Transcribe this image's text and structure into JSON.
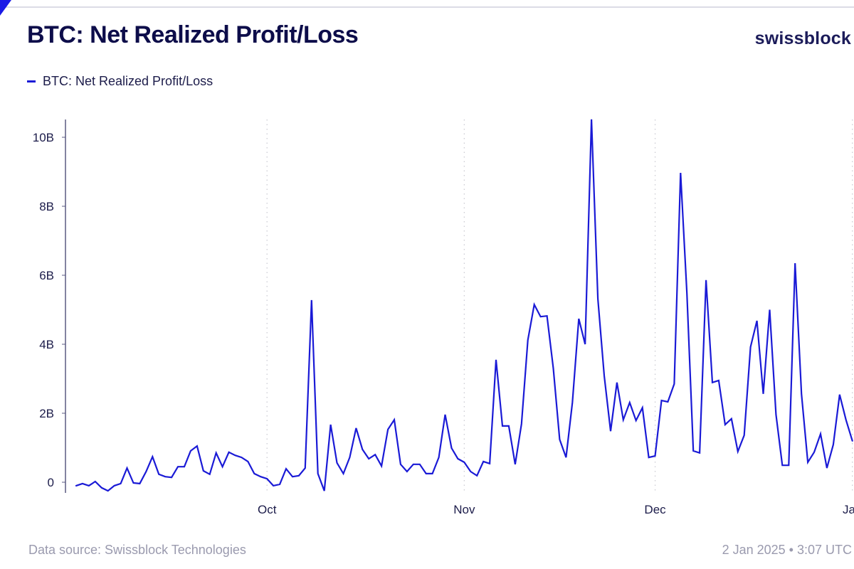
{
  "header": {
    "title": "BTC: Net Realized Profit/Loss",
    "brand": "swissblock"
  },
  "footer": {
    "source": "Data source: Swissblock Technologies",
    "timestamp": "2 Jan 2025 • 3:07 UTC"
  },
  "colors": {
    "line": "#1a1ad6",
    "title": "#0d0d4a",
    "axis": "#5a5a80",
    "grid": "#c8c8d0",
    "footer": "#9a9aae"
  },
  "chart_data": {
    "type": "line",
    "title": "BTC: Net Realized Profit/Loss",
    "xlabel": "",
    "ylabel": "",
    "legend": [
      "BTC: Net Realized Profit/Loss"
    ],
    "legend_position": "top-left",
    "grid": "vertical dotted at month starts",
    "x_start": "2024-09-01",
    "x_end": "2025-01-01",
    "x_unit": "day",
    "x_ticks": [
      {
        "label": "Oct",
        "day_index": 30
      },
      {
        "label": "Nov",
        "day_index": 61
      },
      {
        "label": "Dec",
        "day_index": 91
      },
      {
        "label": "Jan",
        "day_index": 122
      }
    ],
    "y_ticks": [
      {
        "label": "0",
        "value": 0
      },
      {
        "label": "2B",
        "value": 2
      },
      {
        "label": "4B",
        "value": 4
      },
      {
        "label": "6B",
        "value": 6
      },
      {
        "label": "8B",
        "value": 8
      },
      {
        "label": "10B",
        "value": 10
      }
    ],
    "ylim": [
      -0.35,
      10.55
    ],
    "y_unit": "billions USD",
    "series": [
      {
        "name": "BTC: Net Realized Profit/Loss",
        "values": [
          -0.1,
          -0.04,
          -0.1,
          0.02,
          -0.16,
          -0.25,
          -0.1,
          -0.04,
          0.41,
          -0.02,
          -0.04,
          0.31,
          0.74,
          0.23,
          0.16,
          0.14,
          0.45,
          0.45,
          0.91,
          1.05,
          0.33,
          0.23,
          0.85,
          0.45,
          0.87,
          0.78,
          0.72,
          0.6,
          0.25,
          0.16,
          0.1,
          -0.1,
          -0.06,
          0.39,
          0.16,
          0.19,
          0.41,
          5.28,
          0.25,
          -0.25,
          1.67,
          0.56,
          0.25,
          0.72,
          1.57,
          0.95,
          0.68,
          0.8,
          0.47,
          1.53,
          1.81,
          0.52,
          0.31,
          0.52,
          0.52,
          0.25,
          0.25,
          0.72,
          1.96,
          0.99,
          0.68,
          0.58,
          0.31,
          0.19,
          0.6,
          0.54,
          3.55,
          1.63,
          1.63,
          0.52,
          1.69,
          4.12,
          5.15,
          4.8,
          4.82,
          3.3,
          1.24,
          0.72,
          2.31,
          4.74,
          4.0,
          10.52,
          5.32,
          3.09,
          1.48,
          2.89,
          1.81,
          2.31,
          1.79,
          2.16,
          0.72,
          0.76,
          2.37,
          2.33,
          2.85,
          8.97,
          5.48,
          0.91,
          0.85,
          5.86,
          2.89,
          2.95,
          1.67,
          1.84,
          0.89,
          1.36,
          3.92,
          4.68,
          2.56,
          5.0,
          1.96,
          0.49,
          0.49,
          6.35,
          2.56,
          0.58,
          0.87,
          1.4,
          0.41,
          1.09,
          2.54,
          1.81,
          1.2
        ]
      }
    ]
  }
}
